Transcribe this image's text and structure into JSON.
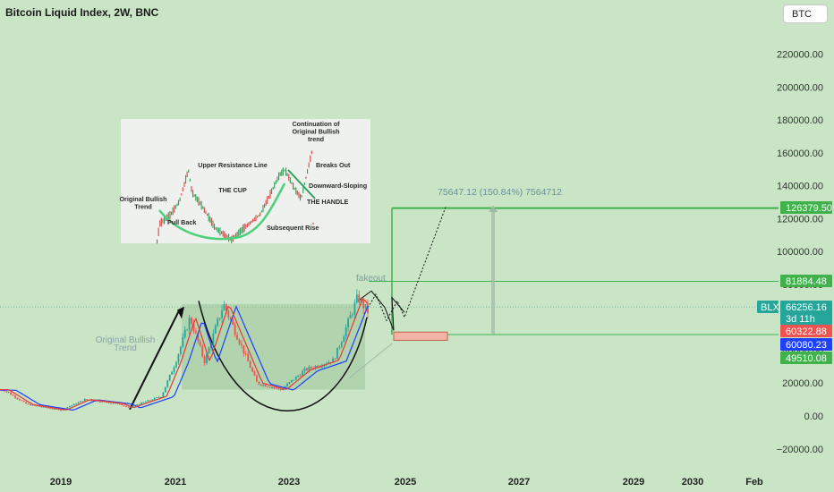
{
  "header": {
    "title": "Bitcoin Liquid Index, 2W, BNC",
    "symbol_button": "BTC"
  },
  "colors": {
    "background": "#c9e5c6",
    "green_line": "#3fb24b",
    "up": "#26a69a",
    "down": "#ef5350",
    "ma_red": "#e53935",
    "ma_blue": "#1e40ff"
  },
  "chart_data": {
    "type": "candlestick",
    "title": "Bitcoin Liquid Index, 2W, BNC",
    "y_axis": {
      "ticks": [
        "220000.00",
        "200000.00",
        "180000.00",
        "160000.00",
        "140000.00",
        "120000.00",
        "100000.00",
        "80000.00",
        "60000.00",
        "40000.00",
        "20000.00",
        "0.00",
        "−20000.00"
      ],
      "ylim": [
        -24000,
        232000
      ]
    },
    "x_axis": {
      "ticks": [
        "2019",
        "2021",
        "2023",
        "2025",
        "2027",
        "2029",
        "2030",
        "Feb"
      ]
    },
    "price_labels": [
      {
        "text": "126379.50",
        "value": 126379.5,
        "color": "#3fb24b"
      },
      {
        "text": "81884.48",
        "value": 81884.48,
        "color": "#3fb24b"
      },
      {
        "text": "66256.16",
        "value": 66256.16,
        "color": "#26a69a"
      },
      {
        "text": "3d 11h",
        "value": null,
        "color": "#26a69a"
      },
      {
        "text": "60322.88",
        "value": 60322.88,
        "color": "#ef5350"
      },
      {
        "text": "60080.23",
        "value": 60080.23,
        "color": "#1e40ff"
      },
      {
        "text": "49510.08",
        "value": 49510.08,
        "color": "#3fb24b"
      }
    ],
    "ticker_label": "BLX",
    "annotations": {
      "projection": "75647.12 (150.84%) 7564712",
      "fakeout": "fakeout",
      "original_trend": "Original Bullish\nTrend"
    },
    "approx_series_points": [
      [
        "2018-01",
        16000
      ],
      [
        "2018-06",
        7000
      ],
      [
        "2019-01",
        3600
      ],
      [
        "2019-06",
        10000
      ],
      [
        "2020-01",
        7500
      ],
      [
        "2020-03",
        5000
      ],
      [
        "2020-10",
        12000
      ],
      [
        "2021-01",
        33000
      ],
      [
        "2021-04",
        60000
      ],
      [
        "2021-07",
        33000
      ],
      [
        "2021-11",
        68000
      ],
      [
        "2022-06",
        20000
      ],
      [
        "2022-11",
        16000
      ],
      [
        "2023-04",
        28000
      ],
      [
        "2023-10",
        34000
      ],
      [
        "2024-03",
        72000
      ],
      [
        "2024-06",
        60000
      ],
      [
        "2024-08",
        56000
      ],
      [
        "2024-10",
        66256
      ]
    ]
  },
  "inset": {
    "labels": [
      "Continuation of\nOriginal Bullish\ntrend",
      "Upper Resistance Line",
      "Breaks Out",
      "Original Bullish\nTrend",
      "THE CUP",
      "Downward-Sloping",
      "THE HANDLE",
      "Pull Back",
      "Subsequent Rise"
    ]
  }
}
